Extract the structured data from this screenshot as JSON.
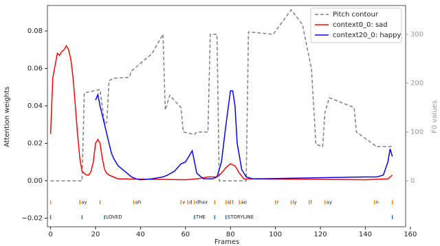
{
  "chart_data": {
    "type": "line",
    "xlabel": "Frames",
    "ylabel": "Attention weights",
    "y2label": "F0 values",
    "xlim": [
      -1.4,
      157.9
    ],
    "ylim": [
      -0.0246,
      0.0936
    ],
    "y2lim": [
      -94,
      359
    ],
    "xticks": [
      0,
      20,
      40,
      60,
      80,
      100,
      120,
      140,
      160
    ],
    "yticks": [
      {
        "value": -0.02,
        "label": "−0.02"
      },
      {
        "value": 0,
        "label": "0.00"
      },
      {
        "value": 0.02,
        "label": "0.02"
      },
      {
        "value": 0.04,
        "label": "0.04"
      },
      {
        "value": 0.06,
        "label": "0.06"
      },
      {
        "value": 0.08,
        "label": "0.08"
      }
    ],
    "y2ticks": [
      0,
      100,
      200,
      300
    ],
    "legend": "upper right",
    "series": [
      {
        "name": "Pitch contour",
        "color": "#7f7f7f",
        "dashed": true,
        "axis": "y2",
        "x": [
          0,
          14,
          15,
          22,
          24,
          25,
          26,
          28,
          35,
          36,
          45,
          50,
          51,
          53,
          58,
          59,
          64,
          65,
          70,
          71,
          74,
          75,
          87,
          88,
          99,
          107,
          112,
          116,
          118,
          121,
          122,
          124,
          135,
          136,
          142,
          145,
          152
        ],
        "values": [
          0,
          0,
          180,
          187,
          117,
          120,
          205,
          210,
          212,
          225,
          260,
          300,
          145,
          175,
          150,
          100,
          95,
          100,
          100,
          300,
          300,
          0,
          0,
          305,
          300,
          350,
          320,
          230,
          75,
          70,
          140,
          170,
          150,
          100,
          80,
          70,
          70
        ]
      },
      {
        "name": "context0_0: sad",
        "color": "#ff0000",
        "dashed": false,
        "x": [
          0,
          1,
          3,
          4,
          5,
          6,
          7,
          8,
          9,
          10,
          11,
          12,
          13,
          14,
          15,
          16,
          17,
          18,
          19,
          20,
          21,
          22,
          23,
          24,
          25,
          26,
          28,
          30,
          60,
          65,
          70,
          74,
          76,
          78,
          80,
          82,
          84,
          86,
          140,
          150,
          152
        ],
        "values": [
          0.025,
          0.055,
          0.068,
          0.067,
          0.069,
          0.07,
          0.072,
          0.07,
          0.065,
          0.055,
          0.04,
          0.025,
          0.012,
          0.005,
          0.004,
          0.003,
          0.003,
          0.005,
          0.01,
          0.02,
          0.022,
          0.02,
          0.012,
          0.006,
          0.004,
          0.003,
          0.002,
          0.001,
          0.0005,
          0.001,
          0.002,
          0.002,
          0.004,
          0.007,
          0.009,
          0.008,
          0.004,
          0.001,
          0.0005,
          0.001,
          0.003
        ]
      },
      {
        "name": "context20_0: happy",
        "color": "#0000ff",
        "dashed": false,
        "x": [
          20,
          21,
          22,
          23,
          24,
          25,
          26,
          27,
          28,
          30,
          32,
          34,
          36,
          38,
          40,
          45,
          50,
          52,
          55,
          58,
          60,
          62,
          63,
          64,
          65,
          68,
          72,
          74,
          76,
          78,
          80,
          81,
          82,
          83,
          85,
          87,
          90,
          140,
          145,
          148,
          150,
          151,
          152
        ],
        "values": [
          0.043,
          0.046,
          0.04,
          0.035,
          0.03,
          0.025,
          0.02,
          0.015,
          0.012,
          0.008,
          0.006,
          0.004,
          0.002,
          0.001,
          0.0005,
          0.001,
          0.002,
          0.003,
          0.005,
          0.009,
          0.01,
          0.014,
          0.016,
          0.01,
          0.004,
          0.001,
          0.001,
          0.002,
          0.01,
          0.03,
          0.048,
          0.048,
          0.04,
          0.02,
          0.006,
          0.002,
          0.001,
          0.002,
          0.002,
          0.003,
          0.01,
          0.017,
          0.013
        ]
      }
    ],
    "phones": {
      "color": "#ff7f0e",
      "y": -0.0115,
      "x": [
        0,
        13,
        22,
        37,
        58,
        61,
        64,
        73,
        78,
        80,
        84,
        100,
        107,
        115,
        122,
        144,
        152
      ],
      "labels": [
        null,
        "ay",
        null,
        "ah",
        "v",
        "d",
        "dhax",
        null,
        "s",
        "t",
        "ao",
        "r",
        "iy",
        "l",
        "ay",
        "n",
        null
      ]
    },
    "words": {
      "color": "#1f77b4",
      "y": -0.0195,
      "x": [
        0,
        14,
        24,
        64,
        73,
        78,
        152
      ],
      "labels": [
        null,
        null,
        "LOVED",
        "THE",
        null,
        "STORYLINE",
        null
      ]
    }
  }
}
